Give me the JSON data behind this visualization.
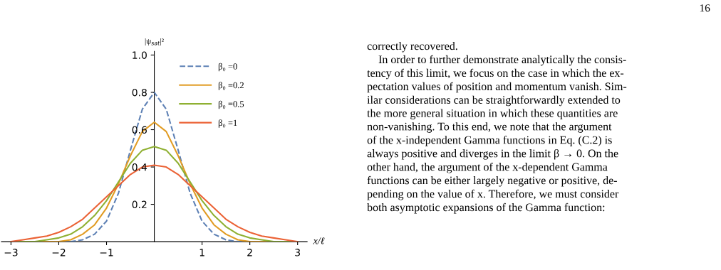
{
  "chart_data": {
    "type": "line",
    "xlabel": "x/ℓ",
    "ylabel": "|ψ$_{sat}$|²",
    "x": [
      -3,
      -2.75,
      -2.5,
      -2.25,
      -2,
      -1.75,
      -1.5,
      -1.25,
      -1,
      -0.75,
      -0.5,
      -0.25,
      0,
      0.25,
      0.5,
      0.75,
      1,
      1.25,
      1.5,
      1.75,
      2,
      2.25,
      2.5,
      2.75,
      3
    ],
    "series": [
      {
        "name": "β₀ =0",
        "color": "#5e81b5",
        "line_style": "dashed",
        "values": [
          null,
          null,
          null,
          0,
          0,
          0,
          0.01,
          0.04,
          0.11,
          0.26,
          0.49,
          0.71,
          0.8,
          0.71,
          0.49,
          0.26,
          0.11,
          0.04,
          0.01,
          0,
          0,
          0,
          null,
          null,
          null
        ]
      },
      {
        "name": "β₀ =0.2",
        "color": "#e19c24",
        "line_style": "solid",
        "values": [
          0,
          0,
          0,
          0,
          0,
          0.01,
          0.04,
          0.09,
          0.18,
          0.31,
          0.46,
          0.59,
          0.64,
          0.59,
          0.46,
          0.31,
          0.18,
          0.09,
          0.04,
          0.01,
          0,
          0,
          0,
          0,
          0
        ]
      },
      {
        "name": "β₀ =0.5",
        "color": "#8fb032",
        "line_style": "solid",
        "values": [
          0,
          0,
          0,
          0.01,
          0.02,
          0.04,
          0.08,
          0.14,
          0.22,
          0.32,
          0.42,
          0.49,
          0.51,
          0.49,
          0.42,
          0.32,
          0.22,
          0.14,
          0.08,
          0.04,
          0.02,
          0.01,
          0,
          0,
          0
        ]
      },
      {
        "name": "β₀ =1",
        "color": "#eb6235",
        "line_style": "solid",
        "values": [
          0,
          0.01,
          0.02,
          0.03,
          0.05,
          0.08,
          0.12,
          0.18,
          0.24,
          0.3,
          0.36,
          0.4,
          0.41,
          0.4,
          0.36,
          0.3,
          0.24,
          0.18,
          0.12,
          0.08,
          0.05,
          0.03,
          0.02,
          0.01,
          0
        ]
      }
    ],
    "xlim": [
      -3.2,
      3.2
    ],
    "ylim": [
      0,
      1.02
    ],
    "xticks": [
      {
        "value": -3,
        "label": "−3"
      },
      {
        "value": -2,
        "label": "−2"
      },
      {
        "value": -1,
        "label": "−1"
      },
      1,
      2,
      3
    ],
    "yticks": [
      0.2,
      0.4,
      0.6,
      0.8,
      {
        "value": 1,
        "label": "1.0"
      }
    ],
    "legend": "top right",
    "grid": false,
    "annotations": [
      "16",
      "correctly recovered.\n    In order to further demonstrate analytically the consis-\ntency of this limit, we focus on the case in which the ex-\npectation values of position and momentum vanish. Sim-\nilar considerations can be straightforwardly extended to\nthe more general situation in which these quantities are\nnon-vanishing. To this end, we note that the argument\nof the x-independent Gamma functions in Eq. (C.2) is\nalways positive and diverges in the limit β → 0. On the\nother hand, the argument of the x-dependent Gamma\nfunctions can be either largely negative or positive, de-\npending on the value of x. Therefore, we must consider\nboth asymptotic expansions of the Gamma function:"
    ]
  }
}
